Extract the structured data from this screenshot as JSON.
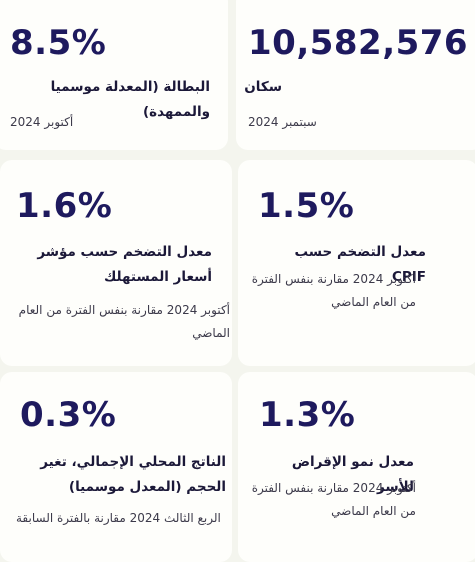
{
  "cards": [
    {
      "value": "8.5%",
      "label": "البطالة (المعدلة موسميا والممهدة)",
      "sub": "أكتوبر 2024"
    },
    {
      "value": "10,582,576",
      "label": "سكان",
      "sub": "سبتمبر 2024"
    },
    {
      "value": "1.6%",
      "label": "معدل التضخم حسب مؤشر أسعار المستهلك",
      "sub": "أكتوبر 2024 مقارنة بنفس الفترة من العام الماضي"
    },
    {
      "value": "1.5%",
      "label": "معدل التضخم حسب CPIF",
      "sub": "أكتوبر 2024 مقارنة بنفس الفترة من العام الماضي"
    },
    {
      "value": "0.3%",
      "label": "الناتج المحلي الإجمالي، تغير الحجم (المعدل موسميا)",
      "sub": "الربع الثالث 2024 مقارنة بالفترة السابقة"
    },
    {
      "value": "1.3%",
      "label": "معدل نمو الإقراض للأسر",
      "sub": "أكتوبر 2024 مقارنة بنفس الفترة من العام الماضي"
    }
  ]
}
